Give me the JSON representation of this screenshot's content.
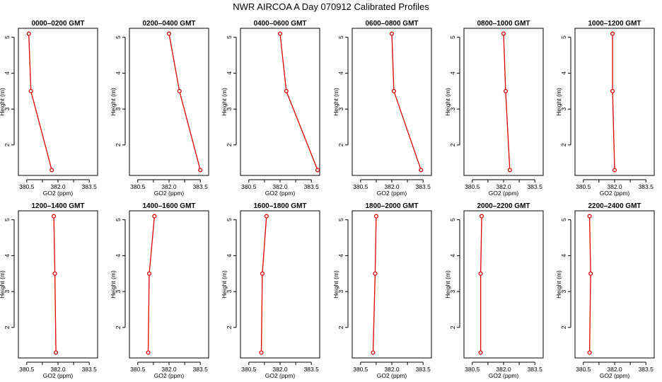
{
  "colors": {
    "series": "#dd0000",
    "axis": "#000000",
    "background": "#ffffff"
  },
  "chart_data": {
    "type": "line",
    "title": "NWR AIRCOA A  Day 070912  Calibrated Profiles",
    "xlabel": "GO2 (ppm)",
    "ylabel": "Height (m)",
    "xlim": [
      380.1,
      383.9
    ],
    "ylim": [
      1.15,
      5.25
    ],
    "x_ticks": [
      380.5,
      382.0,
      383.5
    ],
    "x_minor_ticks": [
      381.25,
      382.75
    ],
    "y_ticks": [
      2,
      3,
      4,
      5
    ],
    "panels": [
      {
        "title": "0000–0200 GMT",
        "x": [
          381.7,
          380.7,
          380.6
        ],
        "y": [
          1.3,
          3.5,
          5.1
        ]
      },
      {
        "title": "0200–0400 GMT",
        "x": [
          383.5,
          382.5,
          382.0
        ],
        "y": [
          1.3,
          3.5,
          5.1
        ]
      },
      {
        "title": "0400–0600 GMT",
        "x": [
          383.8,
          382.3,
          382.0
        ],
        "y": [
          1.3,
          3.5,
          5.1
        ]
      },
      {
        "title": "0600–0800 GMT",
        "x": [
          383.4,
          382.1,
          382.0
        ],
        "y": [
          1.3,
          3.5,
          5.1
        ]
      },
      {
        "title": "0800–1000 GMT",
        "x": [
          382.3,
          382.1,
          382.0
        ],
        "y": [
          1.3,
          3.5,
          5.1
        ]
      },
      {
        "title": "1000–1200 GMT",
        "x": [
          382.0,
          381.9,
          381.9
        ],
        "y": [
          1.3,
          3.5,
          5.1
        ]
      },
      {
        "title": "1200–1400 GMT",
        "x": [
          381.9,
          381.85,
          381.8
        ],
        "y": [
          1.3,
          3.5,
          5.1
        ]
      },
      {
        "title": "1400–1600 GMT",
        "x": [
          381.0,
          381.05,
          381.3
        ],
        "y": [
          1.3,
          3.5,
          5.1
        ]
      },
      {
        "title": "1600–1800 GMT",
        "x": [
          381.1,
          381.15,
          381.35
        ],
        "y": [
          1.3,
          3.5,
          5.1
        ]
      },
      {
        "title": "1800–2000 GMT",
        "x": [
          381.1,
          381.2,
          381.25
        ],
        "y": [
          1.3,
          3.5,
          5.1
        ]
      },
      {
        "title": "2000–2200 GMT",
        "x": [
          380.9,
          380.9,
          380.95
        ],
        "y": [
          1.3,
          3.5,
          5.1
        ]
      },
      {
        "title": "2200–2400 GMT",
        "x": [
          380.8,
          380.85,
          380.8
        ],
        "y": [
          1.3,
          3.5,
          5.1
        ]
      }
    ]
  }
}
